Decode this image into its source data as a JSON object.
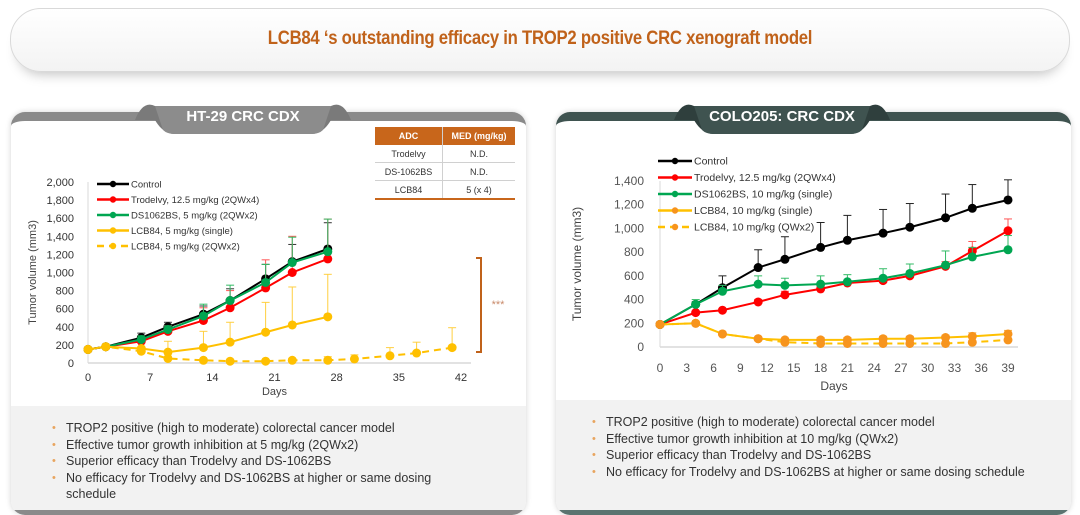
{
  "header": {
    "title": "LCB84 ‘s outstanding efficacy in TROP2 positive CRC xenograft model"
  },
  "left_panel": {
    "tab_title": "HT-29 CRC CDX",
    "med_table": {
      "headers": [
        "ADC",
        "MED (mg/kg)"
      ],
      "rows": [
        [
          "Trodelvy",
          "N.D."
        ],
        [
          "DS-1062BS",
          "N.D."
        ],
        [
          "LCB84",
          "5 (x 4)"
        ]
      ]
    },
    "significance": "***",
    "bullets": [
      "TROP2 positive (high to moderate) colorectal cancer model",
      "Effective tumor growth inhibition at 5 mg/kg (2QWx2)",
      "Superior efficacy than Trodelvy and DS-1062BS",
      "No efficacy for Trodelvy and DS-1062BS at higher or same dosing schedule"
    ]
  },
  "right_panel": {
    "tab_title": "COLO205: CRC CDX",
    "bullets": [
      "TROP2 positive (high to moderate) colorectal cancer model",
      "Effective tumor growth inhibition at 10 mg/kg (QWx2)",
      "Superior efficacy than Trodelvy and DS-1062BS",
      "No efficacy for Trodelvy and DS-1062BS at higher or same dosing schedule"
    ]
  },
  "colors": {
    "accent": "#c0621a",
    "control": "#000000",
    "trodelvy": "#ff0000",
    "ds1062": "#00a651",
    "lcb84": "#ffc000",
    "lcb84_right": "#f7941d"
  },
  "chart_data": [
    {
      "type": "line",
      "title": "HT-29 CRC CDX",
      "xlabel": "Days",
      "ylabel": "Tumor volume (mm3)",
      "xlim": [
        0,
        42
      ],
      "ylim": [
        0,
        2000
      ],
      "xticks": [
        "0",
        "7",
        "14",
        "21",
        "28",
        "35",
        "42"
      ],
      "xtick_values": [
        0,
        7,
        14,
        21,
        28,
        35,
        42
      ],
      "yticks": [
        "0",
        "200",
        "400",
        "600",
        "800",
        "1,000",
        "1,200",
        "1,400",
        "1,600",
        "1,800",
        "2,000"
      ],
      "ytick_values": [
        0,
        200,
        400,
        600,
        800,
        1000,
        1200,
        1400,
        1600,
        1800,
        2000
      ],
      "legend_position": "top-left",
      "annotation": "***",
      "series": [
        {
          "name": "Control",
          "color": "#000000",
          "dashed": false,
          "x": [
            0,
            2,
            6,
            9,
            13,
            16,
            20,
            23,
            27
          ],
          "y": [
            150,
            180,
            280,
            400,
            540,
            690,
            930,
            1120,
            1260
          ],
          "err": [
            0,
            15,
            50,
            50,
            90,
            130,
            160,
            190,
            290
          ]
        },
        {
          "name": "Trodelvy, 12.5 mg/kg (2QWx4)",
          "color": "#ff0000",
          "dashed": false,
          "x": [
            0,
            2,
            6,
            9,
            13,
            16,
            20,
            23,
            27
          ],
          "y": [
            150,
            180,
            240,
            350,
            470,
            610,
            830,
            1000,
            1150
          ],
          "err": [
            0,
            15,
            40,
            60,
            140,
            190,
            310,
            400,
            440
          ]
        },
        {
          "name": "DS1062BS, 5 mg/kg (2QWx2)",
          "color": "#00a651",
          "dashed": false,
          "x": [
            0,
            2,
            6,
            9,
            13,
            16,
            20,
            23,
            27
          ],
          "y": [
            150,
            180,
            260,
            370,
            520,
            690,
            890,
            1110,
            1230
          ],
          "err": [
            0,
            10,
            40,
            40,
            130,
            170,
            200,
            280,
            360
          ]
        },
        {
          "name": "LCB84, 5 mg/kg (single)",
          "color": "#ffc000",
          "dashed": false,
          "x": [
            0,
            2,
            6,
            9,
            13,
            16,
            20,
            23,
            27
          ],
          "y": [
            150,
            180,
            160,
            120,
            170,
            230,
            340,
            420,
            510
          ],
          "err": [
            0,
            0,
            0,
            120,
            180,
            220,
            330,
            420,
            470
          ]
        },
        {
          "name": "LCB84, 5 mg/kg (2QWx2)",
          "color": "#ffc000",
          "dashed": true,
          "x": [
            0,
            2,
            6,
            9,
            13,
            16,
            20,
            23,
            27,
            30,
            34,
            37,
            41
          ],
          "y": [
            150,
            180,
            130,
            50,
            30,
            20,
            20,
            30,
            30,
            45,
            80,
            110,
            170
          ],
          "err": [
            0,
            0,
            0,
            0,
            0,
            0,
            0,
            20,
            40,
            45,
            90,
            120,
            220
          ]
        }
      ]
    },
    {
      "type": "line",
      "title": "COLO205: CRC CDX",
      "xlabel": "Days",
      "ylabel": "Tumor volume (mm3)",
      "xlim": [
        0,
        39
      ],
      "ylim": [
        0,
        1400
      ],
      "xticks": [
        "0",
        "3",
        "6",
        "9",
        "12",
        "15",
        "18",
        "21",
        "24",
        "27",
        "30",
        "33",
        "36",
        "39"
      ],
      "xtick_values": [
        0,
        3,
        6,
        9,
        12,
        15,
        18,
        21,
        24,
        27,
        30,
        33,
        36,
        39
      ],
      "yticks": [
        "0",
        "200",
        "400",
        "600",
        "800",
        "1,000",
        "1,200",
        "1,400"
      ],
      "ytick_values": [
        0,
        200,
        400,
        600,
        800,
        1000,
        1200,
        1400
      ],
      "legend_position": "top-left",
      "series": [
        {
          "name": "Control",
          "color": "#000000",
          "dashed": false,
          "x": [
            0,
            4,
            7,
            11,
            14,
            18,
            21,
            25,
            28,
            32,
            35,
            39
          ],
          "y": [
            190,
            360,
            500,
            670,
            740,
            840,
            900,
            960,
            1010,
            1090,
            1170,
            1240
          ],
          "err": [
            0,
            20,
            100,
            150,
            190,
            210,
            210,
            200,
            200,
            200,
            200,
            170
          ]
        },
        {
          "name": "Trodelvy, 12.5 mg/kg (2QWx4)",
          "color": "#ff0000",
          "dashed": false,
          "x": [
            0,
            4,
            7,
            11,
            14,
            18,
            21,
            25,
            28,
            32,
            35,
            39
          ],
          "y": [
            190,
            290,
            310,
            380,
            440,
            490,
            540,
            560,
            600,
            680,
            810,
            980
          ],
          "err": [
            0,
            0,
            10,
            20,
            30,
            20,
            20,
            20,
            20,
            40,
            80,
            100
          ]
        },
        {
          "name": "DS1062BS, 10 mg/kg (single)",
          "color": "#00a651",
          "dashed": false,
          "x": [
            0,
            4,
            7,
            11,
            14,
            18,
            21,
            25,
            28,
            32,
            35,
            39
          ],
          "y": [
            190,
            360,
            470,
            530,
            520,
            530,
            550,
            580,
            620,
            690,
            760,
            820
          ],
          "err": [
            0,
            40,
            50,
            70,
            60,
            70,
            60,
            80,
            80,
            120,
            80,
            120
          ]
        },
        {
          "name": "LCB84, 10 mg/kg (single)",
          "color": "#ffc000",
          "dashed": false,
          "x": [
            0,
            4,
            7,
            11,
            14,
            18,
            21,
            25,
            28,
            32,
            35,
            39
          ],
          "y": [
            190,
            200,
            110,
            70,
            60,
            60,
            60,
            70,
            70,
            80,
            90,
            110
          ],
          "err": [
            0,
            0,
            0,
            0,
            10,
            20,
            20,
            20,
            20,
            20,
            30,
            30
          ]
        },
        {
          "name": "LCB84, 10 mg/kg (QWx2)",
          "color": "#ffc000",
          "dashed": true,
          "x": [
            0,
            4,
            7,
            11,
            14,
            18,
            21,
            25,
            28,
            32,
            35,
            39
          ],
          "y": [
            190,
            200,
            110,
            70,
            40,
            30,
            30,
            30,
            30,
            30,
            40,
            60
          ],
          "err": [
            0,
            0,
            0,
            0,
            0,
            0,
            0,
            0,
            0,
            0,
            0,
            0
          ]
        }
      ]
    }
  ]
}
